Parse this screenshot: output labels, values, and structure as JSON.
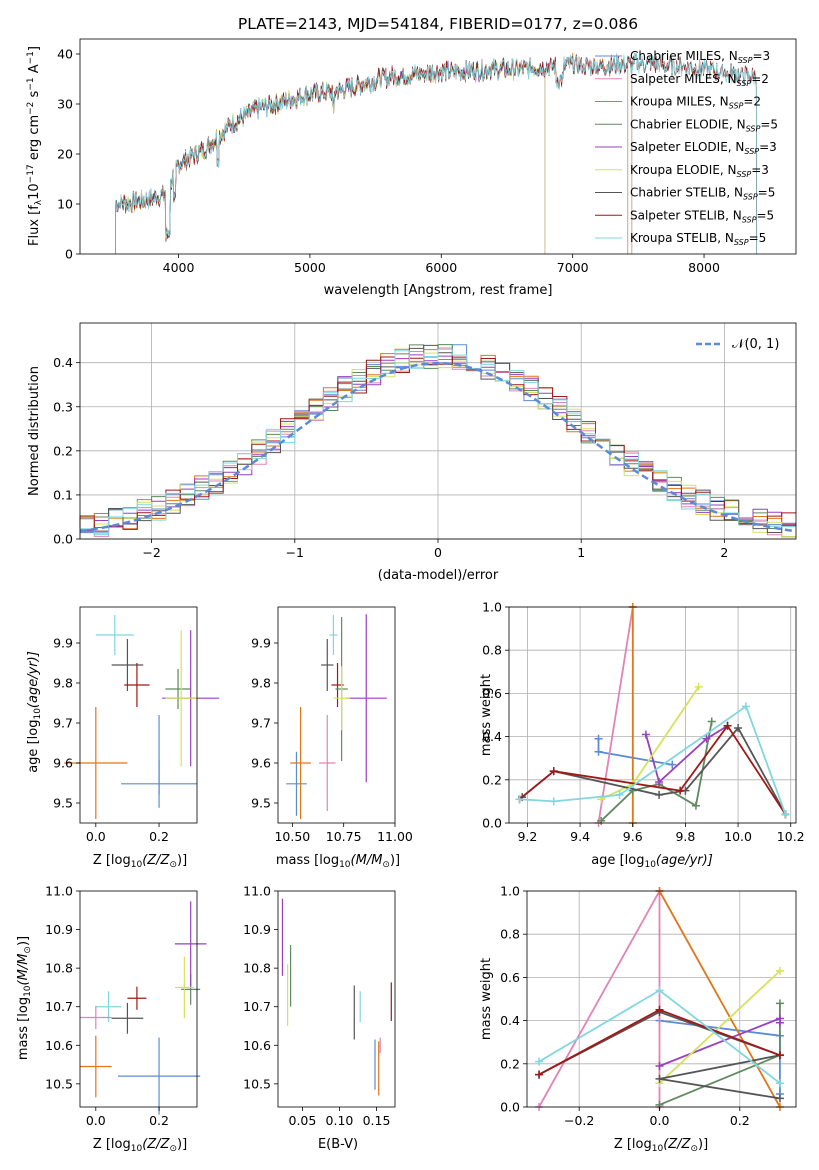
{
  "colors": {
    "Chabrier MILES": "#5b8bd8",
    "Salpeter MILES": "#e283b8",
    "Kroupa MILES": "#e0761a",
    "Chabrier ELODIE": "#5e8a5e",
    "Salpeter ELODIE": "#9a3fbf",
    "Kroupa ELODIE": "#d4e35a",
    "Chabrier STELIB": "#555555",
    "Salpeter STELIB": "#a01818",
    "Kroupa STELIB": "#7fd7e0",
    "gaussian": "#5b8bd8"
  },
  "chart_data": [
    {
      "id": "spectrum",
      "type": "line",
      "title": "PLATE=2143, MJD=54184, FIBERID=0177, z=0.086",
      "xlabel": "wavelength [Angstrom, rest frame]",
      "ylabel_main": "Flux [f",
      "ylabel_sub1": "λ",
      "ylabel_mid": "10",
      "ylabel_sup1": "−17",
      "ylabel_rest1": " erg cm",
      "ylabel_sup2": "−2",
      "ylabel_rest2": " s",
      "ylabel_sup3": "−1",
      "ylabel_rest3": " A",
      "ylabel_sup4": "−1",
      "ylabel_end": "]",
      "xlim": [
        3250,
        8700
      ],
      "ylim": [
        0,
        43
      ],
      "xticks": [
        4000,
        5000,
        6000,
        7000,
        8000
      ],
      "yticks": [
        0,
        10,
        20,
        30,
        40
      ],
      "legend_position": "right",
      "continuum": [
        [
          3520,
          10
        ],
        [
          3700,
          10.5
        ],
        [
          3900,
          12
        ],
        [
          4000,
          18
        ],
        [
          4200,
          21
        ],
        [
          4400,
          26
        ],
        [
          4600,
          29
        ],
        [
          4800,
          30.5
        ],
        [
          5000,
          32
        ],
        [
          5200,
          32.5
        ],
        [
          5400,
          34
        ],
        [
          5600,
          35.5
        ],
        [
          5800,
          36
        ],
        [
          6000,
          36.5
        ],
        [
          6200,
          36.5
        ],
        [
          6400,
          37
        ],
        [
          6600,
          37
        ],
        [
          6800,
          37.5
        ],
        [
          7000,
          38
        ],
        [
          7200,
          37.5
        ],
        [
          7400,
          38
        ],
        [
          7600,
          38
        ],
        [
          7800,
          37.5
        ],
        [
          8000,
          37
        ],
        [
          8200,
          36
        ],
        [
          8400,
          35.5
        ]
      ],
      "series": [
        {
          "name": "Chabrier MILES",
          "label": "Chabrier MILES, N",
          "sub": "SSP",
          "count": "=3",
          "xmax": 7450
        },
        {
          "name": "Salpeter MILES",
          "label": "Salpeter MILES, N",
          "sub": "SSP",
          "count": "=2",
          "xmax": 7450
        },
        {
          "name": "Kroupa MILES",
          "label": "Kroupa MILES, N",
          "sub": "SSP",
          "count": "=2",
          "xmax": 7420
        },
        {
          "name": "Chabrier ELODIE",
          "label": "Chabrier ELODIE, N",
          "sub": "SSP",
          "count": "=5",
          "xmax": 6790
        },
        {
          "name": "Salpeter ELODIE",
          "label": "Salpeter ELODIE, N",
          "sub": "SSP",
          "count": "=3",
          "xmax": 6790
        },
        {
          "name": "Kroupa ELODIE",
          "label": "Kroupa ELODIE, N",
          "sub": "SSP",
          "count": "=3",
          "xmax": 6790
        },
        {
          "name": "Chabrier STELIB",
          "label": "Chabrier STELIB, N",
          "sub": "SSP",
          "count": "=5",
          "xmax": 8400
        },
        {
          "name": "Salpeter STELIB",
          "label": "Salpeter STELIB, N",
          "sub": "SSP",
          "count": "=5",
          "xmax": 8400
        },
        {
          "name": "Kroupa STELIB",
          "label": "Kroupa STELIB, N",
          "sub": "SSP",
          "count": "=5",
          "xmax": 8400
        }
      ]
    },
    {
      "id": "residuals",
      "type": "histogram",
      "xlabel": "(data-model)/error",
      "ylabel": "Normed distribution",
      "xlim": [
        -2.5,
        2.5
      ],
      "ylim": [
        0,
        0.49
      ],
      "xticks": [
        -2,
        -1,
        0,
        1,
        2
      ],
      "yticks": [
        0.0,
        0.1,
        0.2,
        0.3,
        0.4
      ],
      "bin_width": 0.1,
      "legend_label": "𝒩(0, 1)",
      "legend_position": "top-right",
      "grid": true
    },
    {
      "id": "age-vs-Z",
      "type": "errorbar",
      "xlabel": "Z [log",
      "xlabel_sub": "10",
      "xlabel_rest": "(Z/Z",
      "xlabel_sub2": "⊙",
      "xlabel_end": ")]",
      "ylabel": "age  [log",
      "ylabel_sub": "10",
      "ylabel_rest": "(age/yr)]",
      "xlim": [
        -0.05,
        0.32
      ],
      "ylim": [
        9.45,
        9.99
      ],
      "xticks": [
        0.0,
        0.2
      ],
      "yticks": [
        9.5,
        9.6,
        9.7,
        9.8,
        9.9
      ],
      "points": [
        {
          "s": "Kroupa STELIB",
          "x": 0.06,
          "y": 9.92,
          "xerr": 0.06,
          "yerr": 0.05
        },
        {
          "s": "Chabrier STELIB",
          "x": 0.1,
          "y": 9.845,
          "xerr": 0.05,
          "yerr": 0.065
        },
        {
          "s": "Salpeter STELIB",
          "x": 0.13,
          "y": 9.795,
          "xerr": 0.04,
          "yerr": 0.055
        },
        {
          "s": "Chabrier ELODIE",
          "x": 0.26,
          "y": 9.785,
          "xerr": 0.04,
          "yerr": 0.05
        },
        {
          "s": "Salpeter ELODIE",
          "x": 0.3,
          "y": 9.762,
          "xerr": 0.09,
          "yerr": 0.17
        },
        {
          "s": "Kroupa ELODIE",
          "x": 0.27,
          "y": 9.762,
          "xerr": 0.05,
          "yerr": 0.17
        },
        {
          "s": "Chabrier MILES",
          "x": 0.2,
          "y": 9.548,
          "xerr": 0.12,
          "yerr": 0.06
        },
        {
          "s": "Chabrier MILES",
          "x": 0.2,
          "y": 9.62,
          "xerr": 0.0,
          "yerr": 0.1
        },
        {
          "s": "Kroupa MILES",
          "x": 0.0,
          "y": 9.6,
          "xerr": 0.1,
          "yerr": 0.14
        }
      ]
    },
    {
      "id": "age-vs-mass",
      "type": "errorbar",
      "xlabel": "mass [log",
      "xlabel_sub": "10",
      "xlabel_rest": "(M/M",
      "xlabel_sub2": "⊙",
      "xlabel_end": ")]",
      "xlim": [
        10.43,
        11.0
      ],
      "ylim": [
        9.45,
        9.99
      ],
      "xticks": [
        10.5,
        10.75,
        11.0
      ],
      "yticks": [
        9.5,
        9.6,
        9.7,
        9.8,
        9.9
      ],
      "points": [
        {
          "s": "Kroupa STELIB",
          "x": 10.7,
          "y": 9.92,
          "xerr": 0.02,
          "yerr": 0.05
        },
        {
          "s": "Chabrier STELIB",
          "x": 10.67,
          "y": 9.845,
          "xerr": 0.03,
          "yerr": 0.065
        },
        {
          "s": "Salpeter STELIB",
          "x": 10.72,
          "y": 9.795,
          "xerr": 0.03,
          "yerr": 0.055
        },
        {
          "s": "Chabrier ELODIE",
          "x": 10.74,
          "y": 9.785,
          "xerr": 0.03,
          "yerr": 0.18
        },
        {
          "s": "Salpeter ELODIE",
          "x": 10.86,
          "y": 9.762,
          "xerr": 0.1,
          "yerr": 0.21
        },
        {
          "s": "Kroupa ELODIE",
          "x": 10.74,
          "y": 9.762,
          "xerr": 0.04,
          "yerr": 0.08
        },
        {
          "s": "Chabrier MILES",
          "x": 10.52,
          "y": 9.548,
          "xerr": 0.05,
          "yerr": 0.08
        },
        {
          "s": "Salpeter MILES",
          "x": 10.67,
          "y": 9.6,
          "xerr": 0.04,
          "yerr": 0.12
        },
        {
          "s": "Kroupa MILES",
          "x": 10.54,
          "y": 9.6,
          "xerr": 0.05,
          "yerr": 0.14
        }
      ]
    },
    {
      "id": "weight-vs-age",
      "type": "line",
      "xlabel": "age  [log",
      "xlabel_sub": "10",
      "xlabel_rest": "(age/yr)]",
      "ylabel": "mass weight",
      "xlim": [
        9.13,
        10.22
      ],
      "ylim": [
        0,
        1.0
      ],
      "xticks": [
        9.2,
        9.4,
        9.6,
        9.8,
        10.0,
        10.2
      ],
      "yticks": [
        0.0,
        0.2,
        0.4,
        0.6,
        0.8,
        1.0
      ],
      "grid": true,
      "series": [
        {
          "s": "Chabrier MILES",
          "points": [
            [
              9.47,
              0.39
            ],
            [
              9.47,
              0.33
            ],
            [
              9.75,
              0.27
            ]
          ]
        },
        {
          "s": "Salpeter MILES",
          "points": [
            [
              9.47,
              0.0
            ],
            [
              9.6,
              1.0
            ]
          ]
        },
        {
          "s": "Kroupa MILES",
          "points": [
            [
              9.6,
              1.0
            ],
            [
              9.6,
              0.0
            ]
          ]
        },
        {
          "s": "Chabrier ELODIE",
          "points": [
            [
              9.48,
              0.01
            ],
            [
              9.6,
              0.15
            ],
            [
              9.7,
              0.18
            ],
            [
              9.84,
              0.08
            ],
            [
              9.9,
              0.47
            ]
          ]
        },
        {
          "s": "Salpeter ELODIE",
          "points": [
            [
              9.65,
              0.41
            ],
            [
              9.7,
              0.19
            ],
            [
              9.88,
              0.39
            ],
            [
              9.96,
              0.45
            ]
          ]
        },
        {
          "s": "Kroupa ELODIE",
          "points": [
            [
              9.48,
              0.11
            ],
            [
              9.6,
              0.18
            ],
            [
              9.85,
              0.63
            ]
          ]
        },
        {
          "s": "Chabrier STELIB",
          "points": [
            [
              9.18,
              0.12
            ],
            [
              9.3,
              0.24
            ],
            [
              9.7,
              0.13
            ],
            [
              9.8,
              0.15
            ],
            [
              10.0,
              0.44
            ],
            [
              10.18,
              0.04
            ]
          ]
        },
        {
          "s": "Salpeter STELIB",
          "points": [
            [
              9.17,
              0.11
            ],
            [
              9.3,
              0.24
            ],
            [
              9.78,
              0.15
            ],
            [
              9.96,
              0.45
            ],
            [
              10.18,
              0.04
            ]
          ]
        },
        {
          "s": "Kroupa STELIB",
          "points": [
            [
              9.17,
              0.11
            ],
            [
              9.3,
              0.1
            ],
            [
              9.55,
              0.13
            ],
            [
              10.03,
              0.54
            ],
            [
              10.18,
              0.04
            ]
          ]
        }
      ]
    },
    {
      "id": "mass-vs-Z",
      "type": "errorbar",
      "xlabel": "Z [log",
      "xlabel_sub": "10",
      "xlabel_rest": "(Z/Z",
      "xlabel_sub2": "⊙",
      "xlabel_end": ")]",
      "ylabel": "mass [log",
      "ylabel_sub": "10",
      "ylabel_rest": "(M/M",
      "ylabel_sub2": "⊙",
      "ylabel_end": ")]",
      "xlim": [
        -0.05,
        0.32
      ],
      "ylim": [
        10.44,
        11.0
      ],
      "xticks": [
        0.0,
        0.2
      ],
      "yticks": [
        10.5,
        10.6,
        10.7,
        10.8,
        10.9,
        11.0
      ],
      "points": [
        {
          "s": "Kroupa STELIB",
          "x": 0.04,
          "y": 10.7,
          "xerr": 0.04,
          "yerr": 0.04
        },
        {
          "s": "Chabrier STELIB",
          "x": 0.1,
          "y": 10.67,
          "xerr": 0.05,
          "yerr": 0.04
        },
        {
          "s": "Salpeter STELIB",
          "x": 0.13,
          "y": 10.722,
          "xerr": 0.03,
          "yerr": 0.03
        },
        {
          "s": "Chabrier ELODIE",
          "x": 0.3,
          "y": 10.745,
          "xerr": 0.03,
          "yerr": 0.04
        },
        {
          "s": "Salpeter ELODIE",
          "x": 0.3,
          "y": 10.863,
          "xerr": 0.05,
          "yerr": 0.11
        },
        {
          "s": "Kroupa ELODIE",
          "x": 0.28,
          "y": 10.75,
          "xerr": 0.03,
          "yerr": 0.08
        },
        {
          "s": "Salpeter MILES",
          "x": 0.0,
          "y": 10.672,
          "xerr": 0.05,
          "yerr": 0.03
        },
        {
          "s": "Chabrier MILES",
          "x": 0.2,
          "y": 10.52,
          "xerr": 0.13,
          "yerr": 0.1
        },
        {
          "s": "Kroupa MILES",
          "x": 0.0,
          "y": 10.545,
          "xerr": 0.05,
          "yerr": 0.08
        }
      ]
    },
    {
      "id": "mass-vs-EBV",
      "type": "errorbar",
      "xlabel": "E(B-V)",
      "xlim": [
        0.017,
        0.175
      ],
      "ylim": [
        10.44,
        11.0
      ],
      "xticks": [
        0.05,
        0.1,
        0.15
      ],
      "yticks": [
        10.5,
        10.6,
        10.7,
        10.8,
        10.9,
        11.0
      ],
      "points": [
        {
          "s": "Salpeter ELODIE",
          "x": 0.023,
          "y": 10.88,
          "xerr": 0.0,
          "yerr": 0.1
        },
        {
          "s": "Kroupa ELODIE",
          "x": 0.03,
          "y": 10.73,
          "xerr": 0.0,
          "yerr": 0.08
        },
        {
          "s": "Chabrier ELODIE",
          "x": 0.034,
          "y": 10.78,
          "xerr": 0.0,
          "yerr": 0.08
        },
        {
          "s": "Chabrier STELIB",
          "x": 0.12,
          "y": 10.685,
          "xerr": 0.0,
          "yerr": 0.07
        },
        {
          "s": "Kroupa STELIB",
          "x": 0.128,
          "y": 10.7,
          "xerr": 0.0,
          "yerr": 0.04
        },
        {
          "s": "Salpeter STELIB",
          "x": 0.17,
          "y": 10.713,
          "xerr": 0.0,
          "yerr": 0.05
        },
        {
          "s": "Chabrier MILES",
          "x": 0.148,
          "y": 10.55,
          "xerr": 0.0,
          "yerr": 0.065
        },
        {
          "s": "Kroupa MILES",
          "x": 0.153,
          "y": 10.54,
          "xerr": 0.0,
          "yerr": 0.07
        },
        {
          "s": "Salpeter MILES",
          "x": 0.155,
          "y": 10.6,
          "xerr": 0.0,
          "yerr": 0.02
        }
      ]
    },
    {
      "id": "weight-vs-Z",
      "type": "line",
      "xlabel": "Z [log",
      "xlabel_sub": "10",
      "xlabel_rest": "(Z/Z",
      "xlabel_sub2": "⊙",
      "xlabel_end": ")]",
      "ylabel": "mass weight",
      "xlim": [
        -0.33,
        0.34
      ],
      "ylim": [
        0,
        1.0
      ],
      "xticks": [
        -0.2,
        0.0,
        0.2
      ],
      "yticks": [
        0.0,
        0.2,
        0.4,
        0.6,
        0.8,
        1.0
      ],
      "grid": true,
      "series": [
        {
          "s": "Chabrier MILES",
          "points": [
            [
              0.0,
              0.4
            ],
            [
              0.3,
              0.33
            ],
            [
              0.3,
              0.06
            ]
          ]
        },
        {
          "s": "Salpeter MILES",
          "points": [
            [
              -0.3,
              0.0
            ],
            [
              0.0,
              1.0
            ],
            [
              0.0,
              0.0
            ]
          ]
        },
        {
          "s": "Kroupa MILES",
          "points": [
            [
              0.0,
              1.0
            ],
            [
              0.3,
              0.0
            ]
          ]
        },
        {
          "s": "Chabrier ELODIE",
          "points": [
            [
              0.0,
              0.01
            ],
            [
              0.3,
              0.24
            ],
            [
              0.3,
              0.48
            ]
          ]
        },
        {
          "s": "Salpeter ELODIE",
          "points": [
            [
              0.0,
              0.19
            ],
            [
              0.3,
              0.41
            ],
            [
              0.3,
              0.39
            ]
          ]
        },
        {
          "s": "Kroupa ELODIE",
          "points": [
            [
              0.0,
              0.11
            ],
            [
              0.3,
              0.63
            ]
          ]
        },
        {
          "s": "Chabrier STELIB",
          "points": [
            [
              -0.3,
              0.15
            ],
            [
              0.0,
              0.44
            ],
            [
              0.3,
              0.24
            ],
            [
              0.0,
              0.13
            ],
            [
              0.3,
              0.04
            ]
          ]
        },
        {
          "s": "Salpeter STELIB",
          "points": [
            [
              -0.3,
              0.15
            ],
            [
              0.0,
              0.45
            ],
            [
              0.3,
              0.24
            ]
          ]
        },
        {
          "s": "Kroupa STELIB",
          "points": [
            [
              -0.3,
              0.21
            ],
            [
              0.0,
              0.54
            ],
            [
              0.3,
              0.11
            ]
          ]
        }
      ]
    }
  ]
}
